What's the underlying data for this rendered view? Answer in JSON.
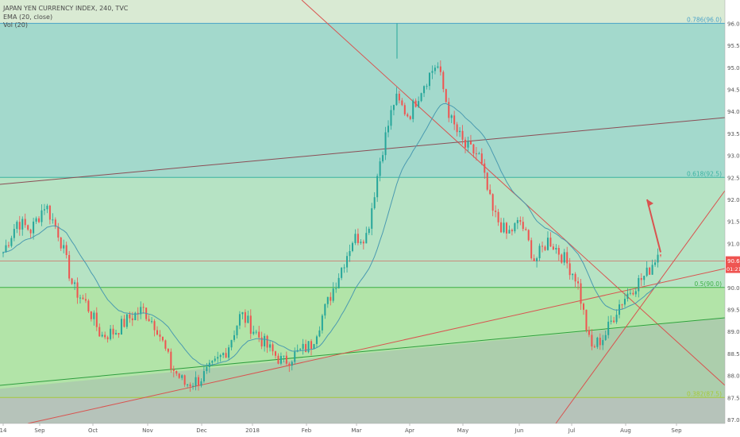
{
  "legend": {
    "symbol": "JAPAN YEN CURRENCY INDEX, 240, TVC",
    "ema": "EMA (20, close)",
    "vol": "Vol (20)"
  },
  "price_badge": {
    "price": "90.6",
    "countdown": "01:21"
  },
  "colors": {
    "fib_top": "#d9ead3",
    "fib_0786_0618": "#a3d9cc",
    "fib_0618_05": "#b6e3c4",
    "fib_05_0382": "#b2e4a8",
    "fib_0382_0236": "#a9c2b3",
    "fib_bottom": "#c8ccc8",
    "up_candle": "#26a69a",
    "down_candle": "#ef5350",
    "ema": "#4a9ab0",
    "trend_red": "#d9534f",
    "trend_dark": "#8b4d55",
    "trend_green": "#2e9e3e",
    "badge": "#ef5350"
  },
  "chart_data": {
    "type": "candlestick",
    "ylim": [
      86.8,
      96.4
    ],
    "y_ticks": [
      "87.0",
      "87.5",
      "88.0",
      "88.5",
      "89.0",
      "89.5",
      "90.0",
      "90.5",
      "91.0",
      "91.5",
      "92.0",
      "92.5",
      "93.0",
      "93.5",
      "94.0",
      "94.5",
      "95.0",
      "95.5",
      "96.0"
    ],
    "x_ticks": [
      "14",
      "Sep",
      "Oct",
      "Nov",
      "Dec",
      "2018",
      "Feb",
      "Mar",
      "Apr",
      "May",
      "Jun",
      "Jul",
      "Aug",
      "Sep"
    ],
    "fib_levels": [
      {
        "ratio": "0.786",
        "price": 96.0,
        "label": "0.786(96.0)"
      },
      {
        "ratio": "0.618",
        "price": 92.5,
        "label": "0.618(92.5)"
      },
      {
        "ratio": "0.5",
        "price": 90.0,
        "label": "0.5(90.0)"
      },
      {
        "ratio": "0.382",
        "price": 87.5,
        "label": "0.382(87.5)"
      }
    ],
    "horizontal_line": 90.6,
    "price_path": [
      [
        "14",
        90.8
      ],
      [
        "14",
        91.5
      ],
      [
        "Sep",
        91.3
      ],
      [
        "Sep",
        91.9
      ],
      [
        "Sep",
        91.2
      ],
      [
        "Sep",
        90.0
      ],
      [
        "Sep",
        89.6
      ],
      [
        "Oct",
        88.9
      ],
      [
        "Oct",
        89.0
      ],
      [
        "Oct",
        89.3
      ],
      [
        "Oct",
        89.5
      ],
      [
        "Oct",
        89.1
      ],
      [
        "Nov",
        88.2
      ],
      [
        "Nov",
        87.8
      ],
      [
        "Nov",
        87.9
      ],
      [
        "Nov",
        88.2
      ],
      [
        "Nov",
        88.6
      ],
      [
        "Dec",
        89.4
      ],
      [
        "Dec",
        89.0
      ],
      [
        "Dec",
        88.6
      ],
      [
        "Dec",
        88.3
      ],
      [
        "Dec",
        88.5
      ],
      [
        "2018",
        88.7
      ],
      [
        "2018",
        89.5
      ],
      [
        "2018",
        90.3
      ],
      [
        "2018",
        91.1
      ],
      [
        "Feb",
        91.2
      ],
      [
        "Feb",
        93.0
      ],
      [
        "Mar",
        94.3
      ],
      [
        "Mar",
        93.9
      ],
      [
        "Mar",
        94.6
      ],
      [
        "Mar",
        95.1
      ],
      [
        "Apr",
        93.8
      ],
      [
        "Apr",
        93.2
      ],
      [
        "Apr",
        93.0
      ],
      [
        "May",
        91.7
      ],
      [
        "May",
        91.2
      ],
      [
        "May",
        91.5
      ],
      [
        "Jun",
        90.6
      ],
      [
        "Jun",
        91.1
      ],
      [
        "Jun",
        90.7
      ],
      [
        "Jul",
        90.2
      ],
      [
        "Jul",
        88.6
      ],
      [
        "Jul",
        88.9
      ],
      [
        "Jul",
        89.6
      ],
      [
        "Aug",
        90.0
      ],
      [
        "Aug",
        90.3
      ],
      [
        "Aug",
        90.9
      ]
    ],
    "arrow": {
      "from_price": 90.8,
      "to_price": 92.0,
      "color": "#d9534f"
    },
    "x": [],
    "series": []
  }
}
